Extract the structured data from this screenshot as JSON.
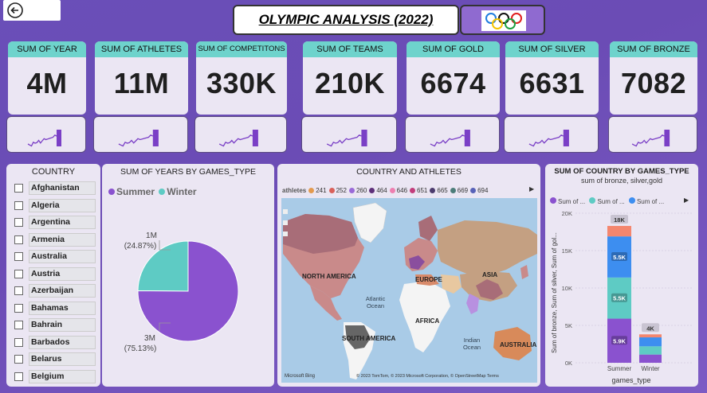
{
  "header": {
    "title": "OLYMPIC ANALYSIS (2022)",
    "back_icon": "back-arrow-icon",
    "logo_icon": "olympic-rings-icon"
  },
  "kpis": [
    {
      "label": "SUM OF YEAR",
      "value": "4M"
    },
    {
      "label": "SUM OF ATHLETES",
      "value": "11M"
    },
    {
      "label": "SUM OF COMPETITONS",
      "value": "330K"
    },
    {
      "label": "SUM OF TEAMS",
      "value": "210K"
    },
    {
      "label": "SUM OF GOLD",
      "value": "6674"
    },
    {
      "label": "SUM OF SILVER",
      "value": "6631"
    },
    {
      "label": "SUM OF BRONZE",
      "value": "7082"
    }
  ],
  "country_slicer": {
    "title": "COUNTRY",
    "items": [
      "Afghanistan",
      "Algeria",
      "Argentina",
      "Armenia",
      "Australia",
      "Austria",
      "Azerbaijan",
      "Bahamas",
      "Bahrain",
      "Barbados",
      "Belarus",
      "Belgium"
    ]
  },
  "pie": {
    "title": "SUM OF YEARS BY GAMES_TYPE",
    "legend": [
      {
        "name": "Summer",
        "color": "#8a52cf"
      },
      {
        "name": "Winter",
        "color": "#5ecbc4"
      }
    ],
    "slices": [
      {
        "name": "Summer",
        "value_label": "3M",
        "pct_label": "(75.13%)",
        "pct": 75.13,
        "color": "#8a52cf"
      },
      {
        "name": "Winter",
        "value_label": "1M",
        "pct_label": "(24.87%)",
        "pct": 24.87,
        "color": "#5ecbc4"
      }
    ]
  },
  "map": {
    "title": "COUNTRY AND ATHLETES",
    "legend_title": "athletes",
    "legend": [
      {
        "label": "241",
        "color": "#e39a4f"
      },
      {
        "label": "252",
        "color": "#d9605a"
      },
      {
        "label": "260",
        "color": "#9a6ad8"
      },
      {
        "label": "464",
        "color": "#5e2f7a"
      },
      {
        "label": "646",
        "color": "#ee7fb0"
      },
      {
        "label": "651",
        "color": "#c23d7c"
      },
      {
        "label": "665",
        "color": "#4c3b6e"
      },
      {
        "label": "669",
        "color": "#4d7d7a"
      },
      {
        "label": "694",
        "color": "#5862b8"
      }
    ],
    "labels": {
      "north_america": "NORTH AMERICA",
      "europe": "EUROPE",
      "asia": "ASIA",
      "africa": "AFRICA",
      "south_america": "SOUTH AMERICA",
      "australia": "AUSTRALIA",
      "atlantic": "Atlantic Ocean",
      "indian": "Indian Ocean"
    },
    "attribution": "© 2023 TomTom, © 2023 Microsoft Corporation, © OpenStreetMap  Terms",
    "brand": "Microsoft Bing"
  },
  "bar": {
    "title": "SUM OF COUNTRY BY GAMES_TYPE",
    "subtitle": "sum of bronze, silver,gold",
    "legend": [
      {
        "name": "Sum of ...",
        "color": "#8a52cf"
      },
      {
        "name": "Sum of ...",
        "color": "#5ecbc4"
      },
      {
        "name": "Sum of ...",
        "color": "#3d8ef0"
      }
    ],
    "ylabel": "Sum of bronze, Sum of silver, Sum of gol...",
    "xlabel": "games_type"
  },
  "chart_data": {
    "type": "bar",
    "stacked": true,
    "categories": [
      "Summer",
      "Winter"
    ],
    "series": [
      {
        "name": "Sum of bronze",
        "color": "#8a52cf",
        "values": [
          5900,
          1100
        ]
      },
      {
        "name": "Sum of silver",
        "color": "#5ecbc4",
        "values": [
          5500,
          1100
        ]
      },
      {
        "name": "Sum of gold",
        "color": "#3d8ef0",
        "values": [
          5500,
          1200
        ]
      },
      {
        "name": "",
        "color": "#f4866e",
        "values": [
          1400,
          400
        ]
      }
    ],
    "totals_labels": [
      "18K",
      "4K"
    ],
    "segment_labels": [
      [
        "5.9K",
        "5.5K",
        "5.5K",
        ""
      ],
      [
        "",
        "",
        "",
        ""
      ]
    ],
    "yticks": [
      0,
      5000,
      10000,
      15000,
      20000
    ],
    "ytick_labels": [
      "0K",
      "5K",
      "10K",
      "15K",
      "20K"
    ],
    "ylim": [
      0,
      20000
    ]
  }
}
